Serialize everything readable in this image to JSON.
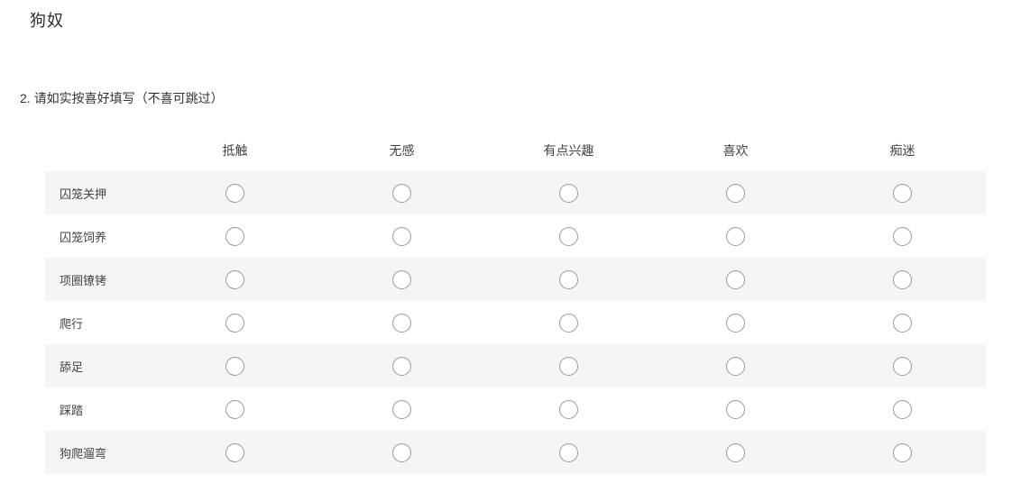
{
  "page": {
    "title": "狗奴"
  },
  "question": {
    "number": "2.",
    "text": "请如实按喜好填写（不喜可跳过）"
  },
  "matrix": {
    "columns": [
      "抵触",
      "无感",
      "有点兴趣",
      "喜欢",
      "痴迷"
    ],
    "rows": [
      "囚笼关押",
      "囚笼饲养",
      "项圈镣铐",
      "爬行",
      "舔足",
      "踩踏",
      "狗爬遛弯"
    ],
    "selected": []
  },
  "colors": {
    "stripe_row_bg": "#f5f5f5",
    "row_bg": "#ffffff",
    "radio_border": "#999999",
    "text": "#444444",
    "title_text": "#2e2e2e"
  }
}
